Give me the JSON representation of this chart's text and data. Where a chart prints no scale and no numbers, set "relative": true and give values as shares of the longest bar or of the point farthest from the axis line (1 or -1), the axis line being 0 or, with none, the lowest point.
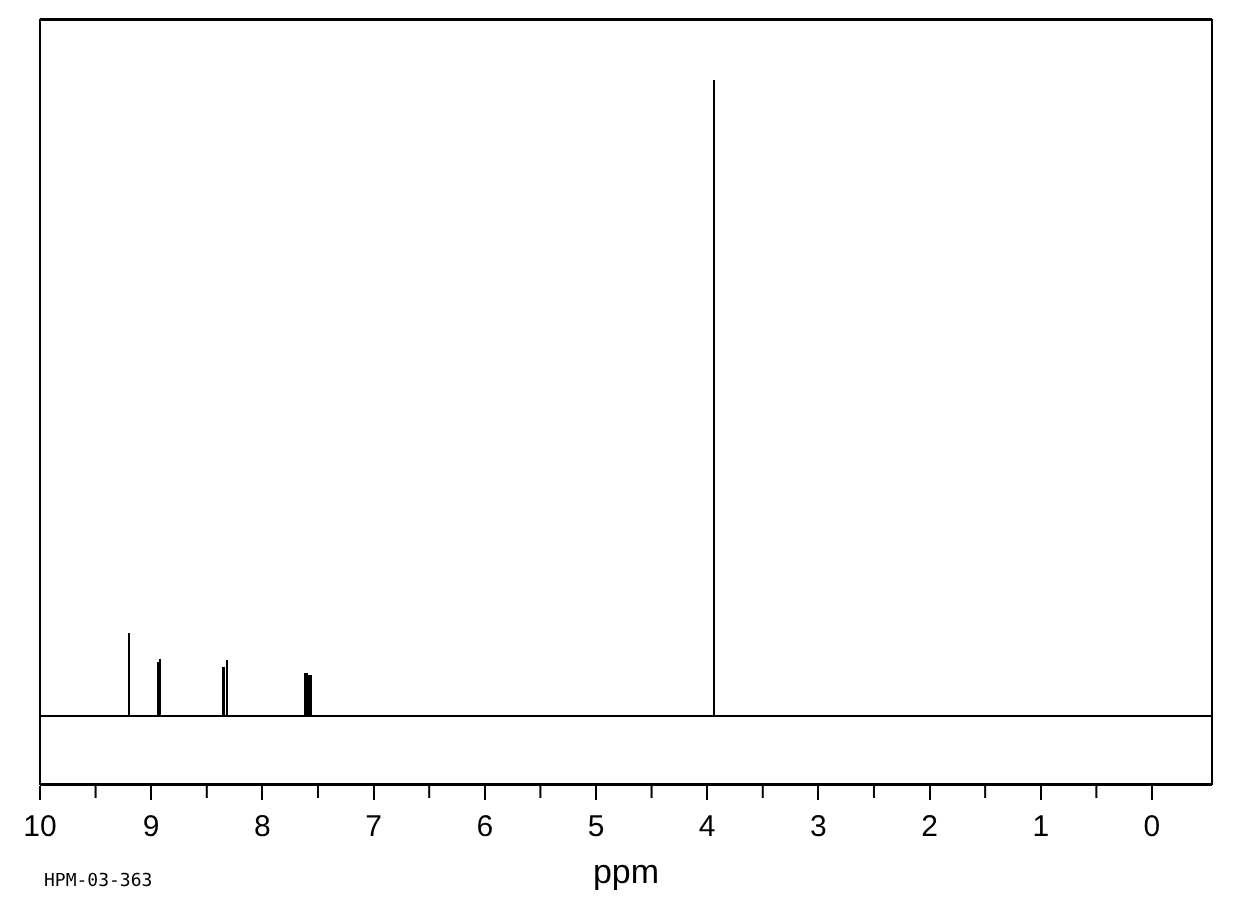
{
  "chart_data": {
    "type": "bar",
    "xlabel": "ppm",
    "relative": true,
    "tick_labels": "x",
    "legend": false,
    "annotations": [
      "HPM-03-363"
    ],
    "xlim": [
      10,
      -0.54
    ],
    "xticks": [
      10,
      9,
      8,
      7,
      6,
      5,
      4,
      3,
      2,
      1,
      0
    ],
    "series": [
      {
        "color": "#000000",
        "x": [
          9.2,
          8.94,
          8.92,
          8.35,
          8.32,
          7.62,
          7.6,
          7.58,
          7.56,
          3.94
        ],
        "values": [
          0.13,
          0.085,
          0.089,
          0.077,
          0.088,
          0.067,
          0.067,
          0.065,
          0.064,
          1
        ]
      }
    ]
  }
}
